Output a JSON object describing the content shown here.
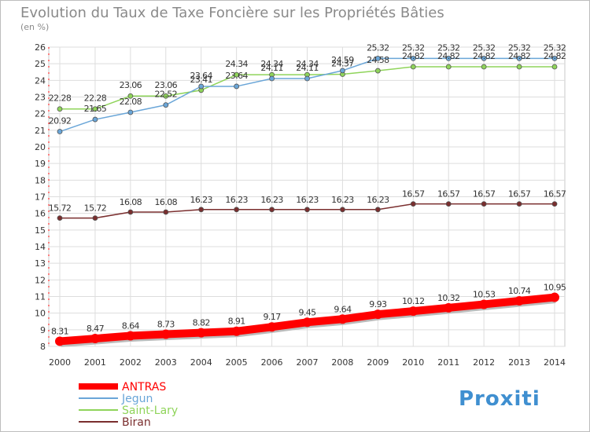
{
  "chart_data": {
    "type": "line",
    "title": "Evolution du Taux de Taxe Foncière sur les Propriétés Bâties",
    "subtitle": "(en %)",
    "xlabel": "",
    "ylabel": "",
    "x": [
      "2000",
      "2001",
      "2002",
      "2003",
      "2004",
      "2005",
      "2006",
      "2007",
      "2008",
      "2009",
      "2010",
      "2011",
      "2012",
      "2013",
      "2014"
    ],
    "ylim": [
      8,
      26
    ],
    "yticks": [
      "8",
      "9",
      "10",
      "11",
      "12",
      "13",
      "14",
      "15",
      "16",
      "17",
      "18",
      "19",
      "20",
      "21",
      "22",
      "23",
      "24",
      "25",
      "26"
    ],
    "grid": true,
    "legend_position": "bottom-left",
    "series": [
      {
        "name": "ANTRAS",
        "color": "#ff0000",
        "values": [
          8.31,
          8.47,
          8.64,
          8.73,
          8.82,
          8.91,
          9.17,
          9.45,
          9.64,
          9.93,
          10.12,
          10.32,
          10.53,
          10.74,
          10.95
        ],
        "labels": [
          "8.31",
          "8.47",
          "8.64",
          "8.73",
          "8.82",
          "8.91",
          "9.17",
          "9.45",
          "9.64",
          "9.93",
          "10.12",
          "10.32",
          "10.53",
          "10.74",
          "10.95"
        ]
      },
      {
        "name": "Jegun",
        "color": "#6aa6d8",
        "values": [
          20.92,
          21.65,
          22.08,
          22.52,
          23.64,
          23.64,
          24.11,
          24.11,
          24.59,
          25.32,
          25.32,
          25.32,
          25.32,
          25.32,
          25.32
        ],
        "labels": [
          "20.92",
          "21.65",
          "22.08",
          "22.52",
          "23.64",
          "23.64",
          "24.11",
          "24.11",
          "24.59",
          "25.32",
          "25.32",
          "25.32",
          "25.32",
          "25.32",
          "25.32"
        ]
      },
      {
        "name": "Saint-Lary",
        "color": "#8fd45a",
        "values": [
          22.28,
          22.28,
          23.06,
          23.06,
          23.41,
          24.34,
          24.34,
          24.34,
          24.37,
          24.58,
          24.82,
          24.82,
          24.82,
          24.82,
          24.82
        ],
        "labels": [
          "22.28",
          "22.28",
          "23.06",
          "23.06",
          "23.41",
          "24.34",
          "24.34",
          "24.34",
          "24.37",
          "24.58",
          "24.82",
          "24.82",
          "24.82",
          "24.82",
          "24.82"
        ]
      },
      {
        "name": "Biran",
        "color": "#7a2e2e",
        "values": [
          15.72,
          15.72,
          16.08,
          16.08,
          16.23,
          16.23,
          16.23,
          16.23,
          16.23,
          16.23,
          16.57,
          16.57,
          16.57,
          16.57,
          16.57
        ],
        "labels": [
          "15.72",
          "15.72",
          "16.08",
          "16.08",
          "16.23",
          "16.23",
          "16.23",
          "16.23",
          "16.23",
          "16.23",
          "16.57",
          "16.57",
          "16.57",
          "16.57",
          "16.57"
        ]
      }
    ]
  },
  "brand": {
    "logo_text": "Proxiti"
  }
}
